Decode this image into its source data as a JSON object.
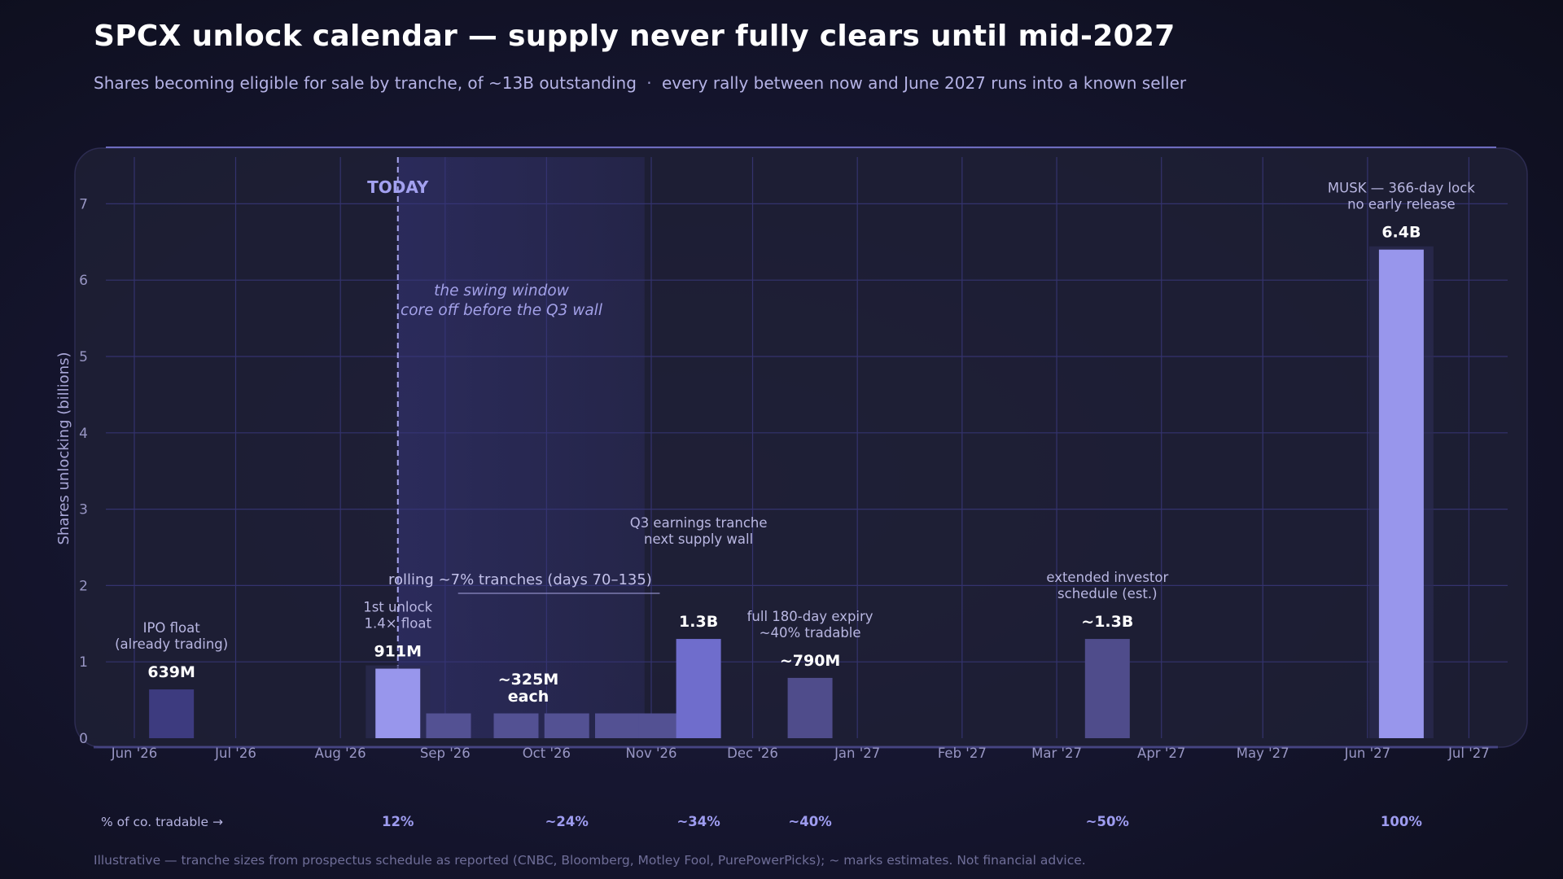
{
  "title": "SPCX unlock calendar — supply never fully clears until mid-2027",
  "subtitle_left": "Shares becoming eligible for sale by tranche, of ~13B outstanding",
  "subtitle_sep": "·",
  "subtitle_right": "every rally between now and June 2027 runs into a known seller",
  "footer": "Illustrative — tranche sizes from prospectus schedule as reported (CNBC, Bloomberg, Motley Fool, PurePowerPicks); ~ marks estimates. Not financial advice.",
  "colors": {
    "bar_dark": "#3d3b7f",
    "bar_mid": "#535193",
    "bar_bright": "#9896ec",
    "bar_q3": "#6f6dcc",
    "bar_dec": "#4f4c8b",
    "bar_mar": "#4f4c8b",
    "accent_text": "#9e9cf0",
    "grid": "#34336e"
  },
  "chart_data": {
    "type": "bar",
    "ylabel": "Shares unlocking (billions)",
    "ylim": [
      0,
      7.6
    ],
    "yticks": [
      "0",
      "1",
      "2",
      "3",
      "4",
      "5",
      "6",
      "7"
    ],
    "xticks": [
      "Jun '26",
      "Jul '26",
      "Aug '26",
      "Sep '26",
      "Oct '26",
      "Nov '26",
      "Dec '26",
      "Jan '27",
      "Feb '27",
      "Mar '27",
      "Apr '27",
      "May '27",
      "Jun '27",
      "Jul '27"
    ],
    "today_label": "TODAY",
    "today_date": "2026-08-18",
    "swing_window": {
      "start": "2026-08-18",
      "end": "2026-10-30",
      "label_line1": "the swing window",
      "label_line2": "core off before the Q3 wall"
    },
    "rolling_label": "rolling ~7% tranches (days 70–135)",
    "bars": [
      {
        "date": "2026-06-12",
        "value": 0.639,
        "label": "639M",
        "note_line1": "IPO float",
        "note_line2": "(already trading)",
        "tone": "dark",
        "tradable": ""
      },
      {
        "date": "2026-08-18",
        "value": 0.911,
        "label": "911M",
        "note_line1": "1st unlock",
        "note_line2": "1.4× float",
        "tone": "bright",
        "tradable": "12%"
      },
      {
        "date": "2026-09-02",
        "value": 0.325,
        "label": "",
        "tone": "mid",
        "tradable": ""
      },
      {
        "date": "2026-09-22",
        "value": 0.325,
        "label": "",
        "tone": "mid",
        "tradable": ""
      },
      {
        "date": "2026-10-07",
        "value": 0.325,
        "label": "",
        "tone": "mid",
        "tradable": "~24%"
      },
      {
        "date": "2026-10-22",
        "value": 0.325,
        "label": "",
        "tone": "mid",
        "tradable": ""
      },
      {
        "date": "2026-11-04",
        "value": 0.325,
        "label": "",
        "tone": "mid",
        "tradable": ""
      },
      {
        "date": "2026-11-15",
        "value": 1.3,
        "label": "1.3B",
        "note_line1": "Q3 earnings tranche",
        "note_line2": "next supply wall",
        "tone": "q3",
        "tradable": "~34%"
      },
      {
        "date": "2026-12-18",
        "value": 0.79,
        "label": "~790M",
        "note_line1": "full 180-day expiry",
        "note_line2": "~40% tradable",
        "tone": "dec",
        "tradable": "~40%"
      },
      {
        "date": "2027-03-16",
        "value": 1.3,
        "label": "~1.3B",
        "note_line1": "extended investor",
        "note_line2": "schedule (est.)",
        "tone": "mar",
        "tradable": "~50%"
      },
      {
        "date": "2027-06-11",
        "value": 6.4,
        "label": "6.4B",
        "note_line1": "MUSK — 366-day lock",
        "note_line2": "no early release",
        "tone": "bright",
        "tradable": "100%"
      }
    ],
    "group_label_line1": "~325M",
    "group_label_line2": "each",
    "tradable_caption": "% of co. tradable →"
  }
}
